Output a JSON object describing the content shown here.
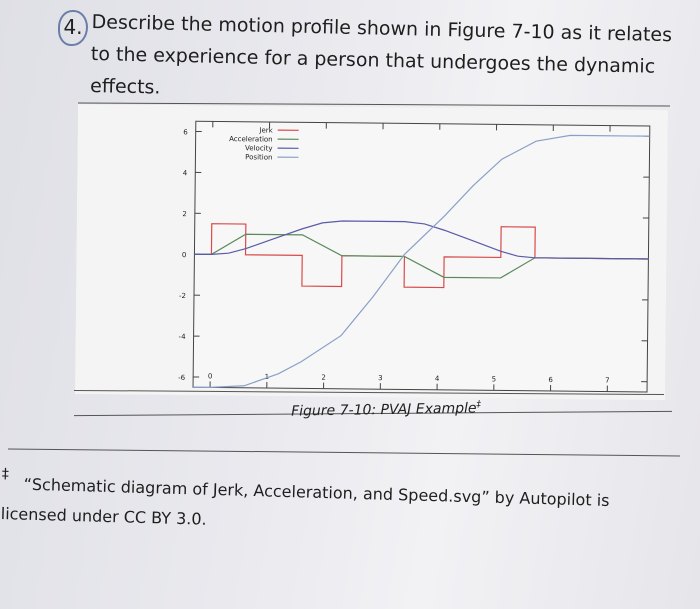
{
  "question": {
    "number": "4.",
    "text": "Describe the motion profile shown in Figure 7-10 as it relates to the experience for a person that undergoes the dynamic effects."
  },
  "figure": {
    "caption": "Figure 7-10: PVAJ Example",
    "caption_mark": "‡"
  },
  "footnote": {
    "mark": "‡",
    "line1": "“Schematic diagram of Jerk, Acceleration, and Speed.svg” by Autopilot is",
    "line2": "licensed under CC BY 3.0."
  },
  "chart_data": {
    "type": "line",
    "xlim": [
      -0.3,
      7.7
    ],
    "ylim": [
      -6.5,
      6.5
    ],
    "x_ticks": [
      "0",
      "1",
      "2",
      "3",
      "4",
      "5",
      "6",
      "7"
    ],
    "y_ticks": [
      "6",
      "4",
      "2",
      "0",
      "-2",
      "-4",
      "-6"
    ],
    "legend_position": "top-left",
    "grid": false,
    "colors": {
      "jerk": "#d94a4a",
      "acceleration": "#5a8a5a",
      "velocity": "#5a5aa8",
      "position": "#8aa0c8"
    },
    "series": [
      {
        "name": "Jerk",
        "points": [
          [
            -0.3,
            0
          ],
          [
            0,
            0
          ],
          [
            0,
            1.5
          ],
          [
            0.6,
            1.5
          ],
          [
            0.6,
            0
          ],
          [
            1.6,
            0
          ],
          [
            1.6,
            -1.5
          ],
          [
            2.3,
            -1.5
          ],
          [
            2.3,
            0
          ],
          [
            3.4,
            0
          ],
          [
            3.4,
            -1.5
          ],
          [
            4.1,
            -1.5
          ],
          [
            4.1,
            0
          ],
          [
            5.1,
            0
          ],
          [
            5.1,
            1.5
          ],
          [
            5.7,
            1.5
          ],
          [
            5.7,
            0
          ],
          [
            7.7,
            0
          ]
        ]
      },
      {
        "name": "Acceleration",
        "points": [
          [
            -0.3,
            0
          ],
          [
            0,
            0
          ],
          [
            0.6,
            1
          ],
          [
            1.6,
            1
          ],
          [
            2.3,
            0
          ],
          [
            3.4,
            0
          ],
          [
            4.1,
            -1
          ],
          [
            5.1,
            -1
          ],
          [
            5.7,
            0
          ],
          [
            7.7,
            0
          ]
        ]
      },
      {
        "name": "Velocity",
        "points": [
          [
            -0.3,
            0
          ],
          [
            0,
            0
          ],
          [
            0.3,
            0.07
          ],
          [
            0.6,
            0.3
          ],
          [
            1.1,
            0.8
          ],
          [
            1.6,
            1.3
          ],
          [
            1.95,
            1.6
          ],
          [
            2.3,
            1.7
          ],
          [
            3.4,
            1.7
          ],
          [
            3.75,
            1.6
          ],
          [
            4.1,
            1.3
          ],
          [
            4.6,
            0.8
          ],
          [
            5.1,
            0.3
          ],
          [
            5.4,
            0.07
          ],
          [
            5.7,
            0
          ],
          [
            7.7,
            0
          ]
        ]
      },
      {
        "name": "Position",
        "points": [
          [
            -0.3,
            -6.5
          ],
          [
            0,
            -6.5
          ],
          [
            0.6,
            -6.4
          ],
          [
            1.2,
            -5.8
          ],
          [
            1.6,
            -5.2
          ],
          [
            2.3,
            -3.9
          ],
          [
            2.85,
            -2.0
          ],
          [
            3.4,
            0.1
          ],
          [
            4.1,
            2.0
          ],
          [
            4.6,
            3.5
          ],
          [
            5.1,
            4.8
          ],
          [
            5.7,
            5.7
          ],
          [
            6.3,
            6.0
          ],
          [
            7.7,
            6.0
          ]
        ]
      }
    ]
  }
}
